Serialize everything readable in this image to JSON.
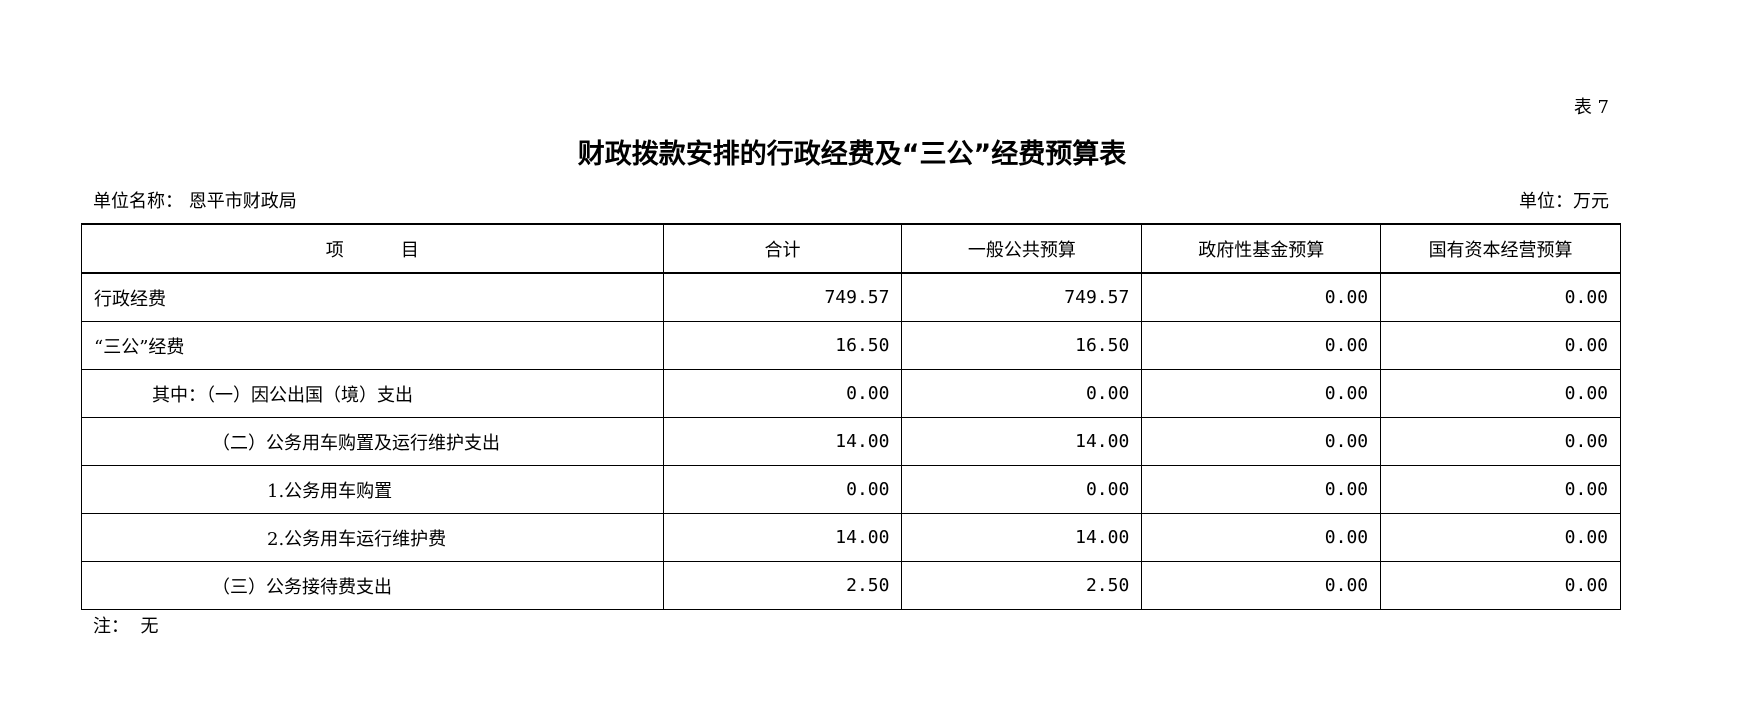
{
  "table_no": "表 7",
  "title": "财政拨款安排的行政经费及“三公”经费预算表",
  "unit_name": "单位名称：  恩平市财政局",
  "unit": "单位：万元",
  "headers": [
    "项          目",
    "合计",
    "一般公共预算",
    "政府性基金预算",
    "国有资本经营预算"
  ],
  "rows": [
    {
      "item": "行政经费",
      "indent": 0,
      "values": [
        "749.57",
        "749.57",
        "0.00",
        "0.00"
      ]
    },
    {
      "item": "“三公”经费",
      "indent": 0,
      "values": [
        "16.50",
        "16.50",
        "0.00",
        "0.00"
      ]
    },
    {
      "item": "其中：（一）因公出国（境）支出",
      "indent": 1,
      "values": [
        "0.00",
        "0.00",
        "0.00",
        "0.00"
      ]
    },
    {
      "item": "（二）公务用车购置及运行维护支出",
      "indent": 2,
      "values": [
        "14.00",
        "14.00",
        "0.00",
        "0.00"
      ]
    },
    {
      "item": "1.公务用车购置",
      "indent": 3,
      "values": [
        "0.00",
        "0.00",
        "0.00",
        "0.00"
      ]
    },
    {
      "item": "2.公务用车运行维护费",
      "indent": 3,
      "values": [
        "14.00",
        "14.00",
        "0.00",
        "0.00"
      ]
    },
    {
      "item": "（三）公务接待费支出",
      "indent": 2,
      "values": [
        "2.50",
        "2.50",
        "0.00",
        "0.00"
      ]
    }
  ],
  "note": "注：  无"
}
